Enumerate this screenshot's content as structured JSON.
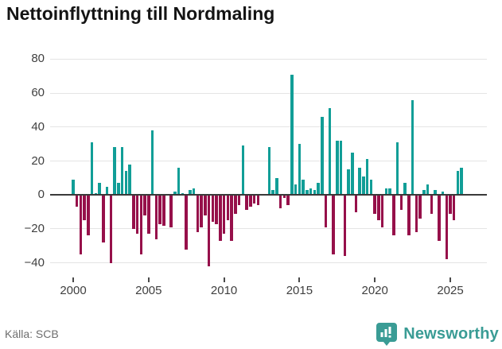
{
  "title": "Nettoinflyttning till Nordmaling",
  "source": {
    "label": "Källa: SCB"
  },
  "branding": {
    "name": "Newsworthy",
    "icon": "newsworthy-badge-chart-icon",
    "color": "#3a9c95"
  },
  "colors": {
    "positive_bar": "#119e97",
    "negative_bar": "#96104a",
    "grid": "#e4e4e4",
    "zero_axis": "#3a3a3a",
    "tick_label": "#3f3f3f",
    "title_text": "#141414",
    "source_text": "#6e6e6e"
  },
  "chart_data": {
    "type": "bar",
    "title": "Nettoinflyttning till Nordmaling",
    "xlabel": "",
    "ylabel": "",
    "frequency": "quarterly",
    "x_start": "2000 Q1",
    "x_end": "2025 Q4",
    "grid": true,
    "legend": "none",
    "ylim": [
      -50,
      83
    ],
    "y_ticks": [
      {
        "label": "80",
        "value": 80
      },
      {
        "label": "60",
        "value": 60
      },
      {
        "label": "40",
        "value": 40
      },
      {
        "label": "20",
        "value": 20
      },
      {
        "label": "0",
        "value": 0
      },
      {
        "label": "−20",
        "value": -20
      },
      {
        "label": "−40",
        "value": -40
      }
    ],
    "x_ticks": [
      {
        "label": "2000",
        "index": 0
      },
      {
        "label": "2005",
        "index": 20
      },
      {
        "label": "2010",
        "index": 40
      },
      {
        "label": "2015",
        "index": 60
      },
      {
        "label": "2020",
        "index": 80
      },
      {
        "label": "2025",
        "index": 100
      }
    ],
    "values": [
      9,
      -7,
      -35,
      -15,
      -24,
      31,
      1,
      7,
      -28,
      5,
      -40,
      28,
      7,
      28,
      14,
      18,
      -20,
      -23,
      -35,
      -12,
      -23,
      38,
      -26,
      -17,
      -18,
      0,
      -19,
      2,
      16,
      1,
      -32,
      3,
      4,
      -22,
      -19,
      -12,
      -42,
      -16,
      -17,
      -27,
      -23,
      -15,
      -27,
      -11,
      -6,
      29,
      -9,
      -7,
      -5,
      -6,
      0,
      0,
      28,
      3,
      10,
      -8,
      -2,
      -6,
      71,
      6,
      30,
      9,
      3,
      4,
      3,
      7,
      46,
      -19,
      51,
      -35,
      32,
      32,
      -36,
      15,
      25,
      -10,
      16,
      11,
      21,
      9,
      -11,
      -15,
      -19,
      4,
      4,
      -24,
      31,
      -9,
      7,
      -24,
      56,
      -22,
      -14,
      3,
      6,
      -11,
      3,
      -27,
      2,
      -38,
      -11,
      -15,
      14,
      16
    ]
  }
}
